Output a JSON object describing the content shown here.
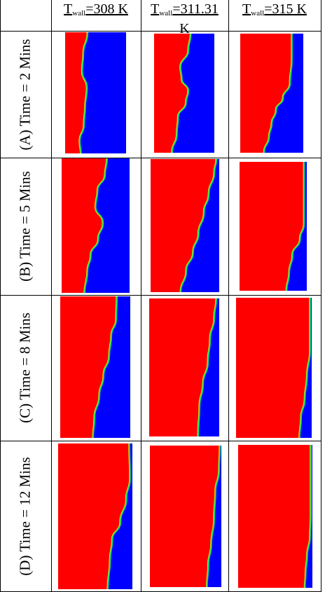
{
  "table": {
    "columns": [
      {
        "prefix": "T",
        "sub": "wall",
        "value": "=308 K",
        "value_line2": ""
      },
      {
        "prefix": "T",
        "sub": "wall",
        "value": "=311.31",
        "value_line2": "K"
      },
      {
        "prefix": "T",
        "sub": "wall",
        "value": "=315 K",
        "value_line2": ""
      }
    ],
    "rows": [
      {
        "label": "(A) Time = 2 Mins"
      },
      {
        "label": "(B) Time = 5 Mins"
      },
      {
        "label": "(C) Time = 8 Mins"
      },
      {
        "label": "(D) Time = 12 Mins"
      }
    ]
  },
  "colors": {
    "solid_phase": "#ff0000",
    "liquid_phase": "#0000ff",
    "interface": "#00e070",
    "grid_lines": "#000000"
  }
}
